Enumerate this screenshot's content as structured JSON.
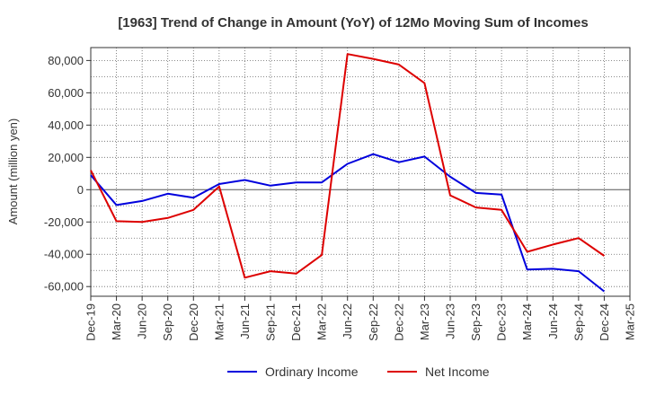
{
  "chart_data": {
    "type": "line",
    "title": "[1963]  Trend of Change in Amount (YoY) of 12Mo Moving Sum of Incomes",
    "xlabel": "",
    "ylabel": "Amount (million yen)",
    "ylim": [
      -66000,
      88000
    ],
    "yticks": [
      -60000,
      -40000,
      -20000,
      0,
      20000,
      40000,
      60000,
      80000
    ],
    "ytick_labels": [
      "-60,000",
      "-40,000",
      "-20,000",
      "0",
      "20,000",
      "40,000",
      "60,000",
      "80,000"
    ],
    "grid": true,
    "legend_position": "bottom",
    "categories": [
      "Dec-19",
      "Mar-20",
      "Jun-20",
      "Sep-20",
      "Dec-20",
      "Mar-21",
      "Jun-21",
      "Sep-21",
      "Dec-21",
      "Mar-22",
      "Jun-22",
      "Sep-22",
      "Dec-22",
      "Mar-23",
      "Jun-23",
      "Sep-23",
      "Dec-23",
      "Mar-24",
      "Jun-24",
      "Sep-24",
      "Dec-24",
      "Mar-25"
    ],
    "series": [
      {
        "name": "Ordinary Income",
        "color": "#0000dd",
        "values": [
          9000,
          -9500,
          -7000,
          -2500,
          -5000,
          3500,
          6000,
          2500,
          4500,
          4500,
          16000,
          22000,
          17000,
          20500,
          8000,
          -2000,
          -3000,
          -49500,
          -49000,
          -50500,
          -63000,
          null
        ]
      },
      {
        "name": "Net Income",
        "color": "#dd0000",
        "values": [
          12000,
          -19500,
          -20000,
          -17500,
          -12500,
          2000,
          -54500,
          -50500,
          -52000,
          -40500,
          84000,
          81000,
          77500,
          66000,
          -3500,
          -11000,
          -12500,
          -38500,
          -34000,
          -30000,
          -41000,
          null
        ]
      }
    ]
  }
}
